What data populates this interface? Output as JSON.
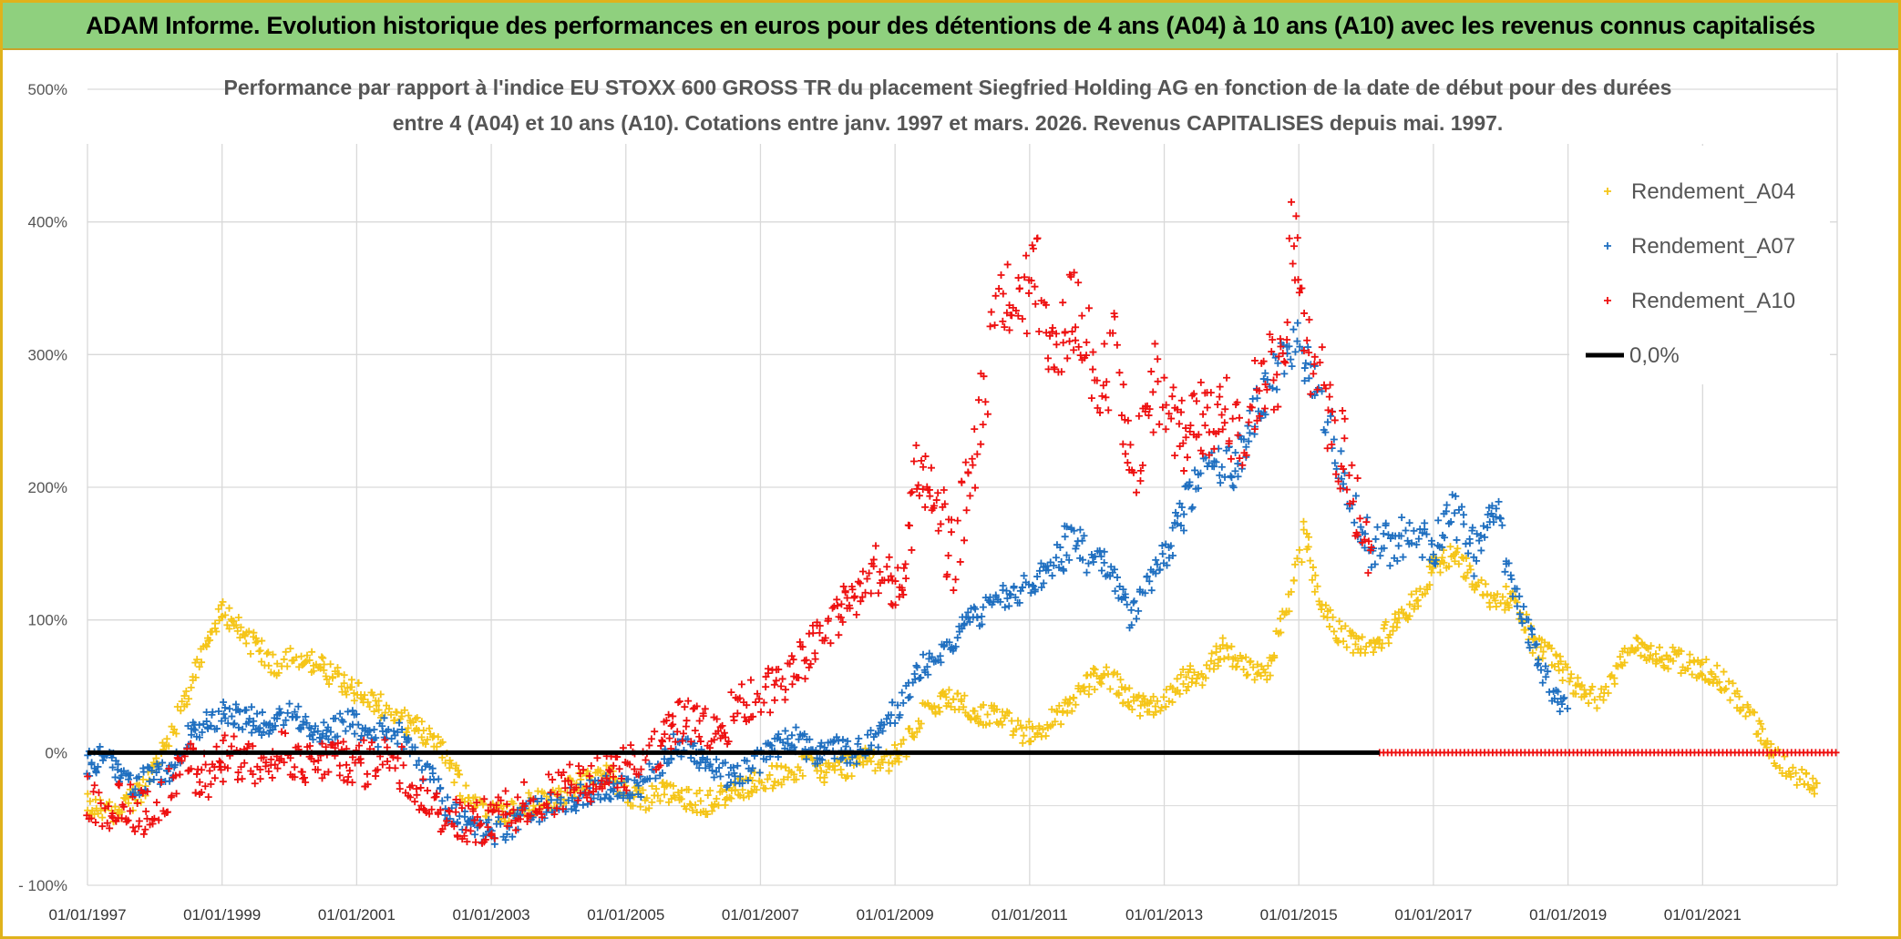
{
  "banner": {
    "title": "ADAM Informe. Evolution historique des performances en euros pour des détentions de 4 ans (A04) à 10 ans (A10) avec les revenus connus capitalisés"
  },
  "colors": {
    "A04": "#f5c518",
    "A07": "#1f6fc0",
    "A10": "#ee1010",
    "zero": "#000000",
    "grid": "#d9d9d9",
    "frame": "#e0b21c",
    "banner": "#8fd07e"
  },
  "chart_data": {
    "type": "scatter",
    "title_lines": [
      "Performance par rapport à l'indice EU STOXX 600 GROSS TR  du placement Siegfried Holding AG en fonction de la date de début pour des durées",
      "entre 4 (A04) et 10 ans (A10). Cotations entre janv. 1997 et mars. 2026. Revenus CAPITALISES depuis mai. 1997."
    ],
    "xlabel": "",
    "ylabel": "",
    "xlim": [
      1997.0,
      2023.0
    ],
    "ylim": [
      -100,
      500
    ],
    "y_ticks": [
      -100,
      0,
      100,
      200,
      300,
      400,
      500
    ],
    "y_tick_labels": [
      "- 100%",
      "0%",
      "100%",
      "200%",
      "300%",
      "400%",
      "500%"
    ],
    "x_ticks": [
      1997,
      1999,
      2001,
      2003,
      2005,
      2007,
      2009,
      2011,
      2013,
      2015,
      2017,
      2019,
      2021
    ],
    "x_tick_labels": [
      "01/01/1997",
      "01/01/1999",
      "01/01/2001",
      "01/01/2003",
      "01/01/2005",
      "01/01/2007",
      "01/01/2009",
      "01/01/2011",
      "01/01/2013",
      "01/01/2015",
      "01/01/2017",
      "01/01/2019",
      "01/01/2021"
    ],
    "grid": true,
    "legend_position": "top-right",
    "series": [
      {
        "name": "Rendement_A04",
        "color_key": "A04",
        "marker": "plus",
        "x": [
          1997.0,
          1997.4,
          1997.8,
          1998.0,
          1998.3,
          1998.6,
          1998.8,
          1999.0,
          1999.2,
          1999.5,
          1999.8,
          2000.0,
          2000.3,
          2000.6,
          2000.9,
          2001.2,
          2001.5,
          2001.8,
          2002.0,
          2002.3,
          2002.6,
          2002.9,
          2003.2,
          2003.5,
          2003.8,
          2004.1,
          2004.4,
          2004.7,
          2005.0,
          2005.3,
          2005.6,
          2005.9,
          2006.2,
          2006.5,
          2006.8,
          2007.1,
          2007.4,
          2007.7,
          2008.0,
          2008.3,
          2008.6,
          2008.9,
          2009.1,
          2009.4,
          2009.7,
          2010.0,
          2010.3,
          2010.6,
          2010.9,
          2011.2,
          2011.5,
          2011.8,
          2012.1,
          2012.4,
          2012.7,
          2013.0,
          2013.3,
          2013.6,
          2013.9,
          2014.2,
          2014.5,
          2014.7,
          2014.9,
          2015.1,
          2015.3,
          2015.6,
          2015.9,
          2016.2,
          2016.5,
          2016.8,
          2017.0,
          2017.3,
          2017.6,
          2017.9,
          2018.2,
          2018.5,
          2018.8,
          2019.1,
          2019.4,
          2019.7,
          2020.0,
          2020.3,
          2020.6,
          2020.9,
          2021.2,
          2021.5,
          2021.8,
          2022.1,
          2022.4,
          2022.7
        ],
        "y": [
          -40,
          -45,
          -30,
          -10,
          20,
          60,
          80,
          110,
          95,
          80,
          65,
          75,
          70,
          60,
          50,
          40,
          30,
          20,
          15,
          0,
          -30,
          -40,
          -45,
          -40,
          -35,
          -30,
          -20,
          -15,
          -30,
          -35,
          -30,
          -35,
          -38,
          -30,
          -25,
          -20,
          -15,
          -10,
          -15,
          -10,
          -5,
          -5,
          0,
          30,
          40,
          35,
          30,
          25,
          15,
          20,
          30,
          50,
          60,
          45,
          35,
          40,
          55,
          60,
          80,
          65,
          55,
          90,
          120,
          170,
          110,
          90,
          80,
          85,
          100,
          120,
          140,
          150,
          130,
          110,
          120,
          80,
          70,
          50,
          40,
          60,
          80,
          75,
          70,
          65,
          60,
          40,
          20,
          -5,
          -20,
          -25
        ]
      },
      {
        "name": "Rendement_A07",
        "color_key": "A07",
        "marker": "plus",
        "x": [
          1997.0,
          1997.3,
          1997.6,
          1997.9,
          1998.2,
          1998.5,
          1998.8,
          1999.1,
          1999.4,
          1999.7,
          2000.0,
          2000.3,
          2000.6,
          2000.9,
          2001.2,
          2001.5,
          2001.8,
          2002.1,
          2002.4,
          2002.7,
          2003.0,
          2003.3,
          2003.6,
          2003.9,
          2004.2,
          2004.5,
          2004.8,
          2005.1,
          2005.4,
          2005.7,
          2006.0,
          2006.3,
          2006.6,
          2006.9,
          2007.2,
          2007.5,
          2007.8,
          2008.1,
          2008.4,
          2008.7,
          2009.0,
          2009.2,
          2009.5,
          2009.8,
          2010.1,
          2010.4,
          2010.7,
          2011.0,
          2011.3,
          2011.6,
          2011.9,
          2012.2,
          2012.5,
          2012.8,
          2013.1,
          2013.4,
          2013.7,
          2014.0,
          2014.3,
          2014.6,
          2014.8,
          2015.0,
          2015.2,
          2015.5,
          2015.8,
          2016.1,
          2016.4,
          2016.7,
          2017.0,
          2017.3,
          2017.6,
          2017.9,
          2018.2,
          2018.5,
          2018.8,
          2019.0
        ],
        "y": [
          -10,
          0,
          -25,
          -20,
          -15,
          10,
          25,
          30,
          25,
          20,
          30,
          20,
          15,
          25,
          10,
          20,
          5,
          -20,
          -45,
          -55,
          -60,
          -55,
          -45,
          -40,
          -35,
          -30,
          -25,
          -30,
          -15,
          5,
          0,
          -10,
          -20,
          -10,
          5,
          10,
          0,
          5,
          0,
          10,
          30,
          50,
          70,
          80,
          100,
          110,
          120,
          125,
          140,
          160,
          150,
          140,
          100,
          130,
          160,
          200,
          230,
          210,
          250,
          280,
          300,
          310,
          280,
          240,
          190,
          150,
          160,
          170,
          155,
          180,
          150,
          185,
          120,
          80,
          40,
          30
        ]
      },
      {
        "name": "Rendement_A10",
        "color_key": "A10",
        "marker": "plus",
        "x": [
          1997.0,
          1997.3,
          1997.6,
          1997.9,
          1998.2,
          1998.5,
          1998.8,
          1999.1,
          1999.4,
          1999.7,
          2000.0,
          2000.3,
          2000.6,
          2000.9,
          2001.2,
          2001.5,
          2001.8,
          2002.1,
          2002.4,
          2002.7,
          2003.0,
          2003.3,
          2003.6,
          2003.9,
          2004.2,
          2004.5,
          2004.8,
          2005.1,
          2005.4,
          2005.7,
          2006.0,
          2006.3,
          2006.6,
          2006.9,
          2007.2,
          2007.5,
          2007.8,
          2008.1,
          2008.4,
          2008.7,
          2008.9,
          2009.1,
          2009.3,
          2009.5,
          2009.7,
          2009.9,
          2010.1,
          2010.3,
          2010.5,
          2010.7,
          2010.9,
          2011.1,
          2011.3,
          2011.5,
          2011.7,
          2011.9,
          2012.1,
          2012.3,
          2012.5,
          2012.7,
          2012.9,
          2013.1,
          2013.3,
          2013.5,
          2013.7,
          2013.9,
          2014.1,
          2014.3,
          2014.5,
          2014.7,
          2014.8,
          2014.9,
          2015.1,
          2015.3,
          2015.5,
          2015.7,
          2015.9,
          2016.1
        ],
        "y": [
          -35,
          -40,
          -40,
          -45,
          -30,
          -10,
          -20,
          0,
          -10,
          -5,
          0,
          -10,
          -5,
          -5,
          -10,
          0,
          -20,
          -40,
          -50,
          -55,
          -50,
          -45,
          -35,
          -30,
          -25,
          -20,
          -15,
          -10,
          0,
          20,
          25,
          10,
          30,
          40,
          50,
          60,
          80,
          100,
          120,
          140,
          130,
          120,
          200,
          220,
          170,
          150,
          200,
          260,
          320,
          350,
          340,
          360,
          300,
          320,
          340,
          300,
          280,
          310,
          200,
          250,
          280,
          260,
          230,
          250,
          240,
          260,
          230,
          260,
          280,
          290,
          320,
          410,
          300,
          280,
          250,
          220,
          180,
          130
        ]
      },
      {
        "name": "Rendement_A10_zero_tail",
        "color_key": "A10",
        "marker": "plus",
        "x_range": [
          2016.2,
          2023.0
        ],
        "y": 0
      }
    ],
    "reference_line": {
      "name": "0,0%",
      "color_key": "zero",
      "x_range": [
        1997.0,
        2016.2
      ],
      "y": 0
    },
    "legend": [
      {
        "label": "Rendement_A04",
        "color_key": "A04",
        "marker": "plus"
      },
      {
        "label": "Rendement_A07",
        "color_key": "A07",
        "marker": "plus"
      },
      {
        "label": "Rendement_A10",
        "color_key": "A10",
        "marker": "plus"
      },
      {
        "label": "0,0%",
        "color_key": "zero",
        "marker": "line"
      }
    ]
  }
}
